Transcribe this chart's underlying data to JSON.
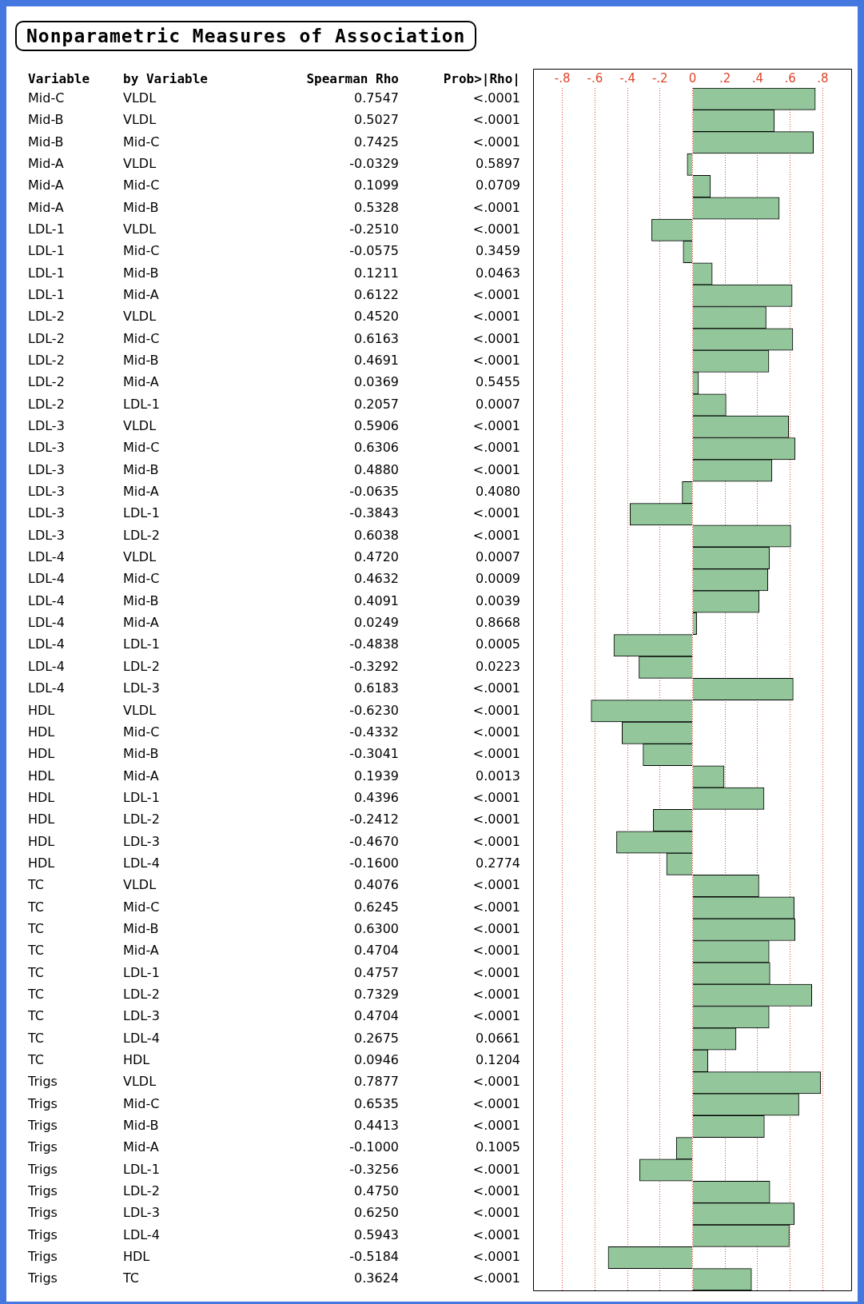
{
  "chart_data": {
    "type": "bar",
    "orientation": "horizontal",
    "title": "Nonparametric Measures of Association",
    "categories": [
      "Mid-C VLDL",
      "Mid-B VLDL",
      "Mid-B Mid-C",
      "Mid-A VLDL",
      "Mid-A Mid-C",
      "Mid-A Mid-B",
      "LDL-1 VLDL",
      "LDL-1 Mid-C",
      "LDL-1 Mid-B",
      "LDL-1 Mid-A",
      "LDL-2 VLDL",
      "LDL-2 Mid-C",
      "LDL-2 Mid-B",
      "LDL-2 Mid-A",
      "LDL-2 LDL-1",
      "LDL-3 VLDL",
      "LDL-3 Mid-C",
      "LDL-3 Mid-B",
      "LDL-3 Mid-A",
      "LDL-3 LDL-1",
      "LDL-3 LDL-2",
      "LDL-4 VLDL",
      "LDL-4 Mid-C",
      "LDL-4 Mid-B",
      "LDL-4 Mid-A",
      "LDL-4 LDL-1",
      "LDL-4 LDL-2",
      "LDL-4 LDL-3",
      "HDL VLDL",
      "HDL Mid-C",
      "HDL Mid-B",
      "HDL Mid-A",
      "HDL LDL-1",
      "HDL LDL-2",
      "HDL LDL-3",
      "HDL LDL-4",
      "TC VLDL",
      "TC Mid-C",
      "TC Mid-B",
      "TC Mid-A",
      "TC LDL-1",
      "TC LDL-2",
      "TC LDL-3",
      "TC LDL-4",
      "TC HDL",
      "Trigs VLDL",
      "Trigs Mid-C",
      "Trigs Mid-B",
      "Trigs Mid-A",
      "Trigs LDL-1",
      "Trigs LDL-2",
      "Trigs LDL-3",
      "Trigs LDL-4",
      "Trigs HDL",
      "Trigs TC"
    ],
    "values": [
      0.7547,
      0.5027,
      0.7425,
      -0.0329,
      0.1099,
      0.5328,
      -0.251,
      -0.0575,
      0.1211,
      0.6122,
      0.452,
      0.6163,
      0.4691,
      0.0369,
      0.2057,
      0.5906,
      0.6306,
      0.488,
      -0.0635,
      -0.3843,
      0.6038,
      0.472,
      0.4632,
      0.4091,
      0.0249,
      -0.4838,
      -0.3292,
      0.6183,
      -0.623,
      -0.4332,
      -0.3041,
      0.1939,
      0.4396,
      -0.2412,
      -0.467,
      -0.16,
      0.4076,
      0.6245,
      0.63,
      0.4704,
      0.4757,
      0.7329,
      0.4704,
      0.2675,
      0.0946,
      0.7877,
      0.6535,
      0.4413,
      -0.1,
      -0.3256,
      0.475,
      0.625,
      0.5943,
      -0.5184,
      0.3624
    ],
    "value_labels": [
      "0.7547",
      "0.5027",
      "0.7425",
      "-0.0329",
      "0.1099",
      "0.5328",
      "-0.2510",
      "-0.0575",
      "0.1211",
      "0.6122",
      "0.4520",
      "0.6163",
      "0.4691",
      "0.0369",
      "0.2057",
      "0.5906",
      "0.6306",
      "0.4880",
      "-0.0635",
      "-0.3843",
      "0.6038",
      "0.4720",
      "0.4632",
      "0.4091",
      "0.0249",
      "-0.4838",
      "-0.3292",
      "0.6183",
      "-0.6230",
      "-0.4332",
      "-0.3041",
      "0.1939",
      "0.4396",
      "-0.2412",
      "-0.4670",
      "-0.1600",
      "0.4076",
      "0.6245",
      "0.6300",
      "0.4704",
      "0.4757",
      "0.7329",
      "0.4704",
      "0.2675",
      "0.0946",
      "0.7877",
      "0.6535",
      "0.4413",
      "-0.1000",
      "-0.3256",
      "0.4750",
      "0.6250",
      "0.5943",
      "-0.5184",
      "0.3624"
    ],
    "annotations": [
      "Variable",
      "by Variable",
      "Spearman Rho",
      "Prob>|Rho|",
      "<.0001",
      "<.0001",
      "<.0001",
      "0.5897",
      "0.0709",
      "<.0001",
      "<.0001",
      "0.3459",
      "0.0463",
      "<.0001",
      "<.0001",
      "<.0001",
      "<.0001",
      "0.5455",
      "0.0007",
      "<.0001",
      "<.0001",
      "<.0001",
      "0.4080",
      "<.0001",
      "<.0001",
      "0.0007",
      "0.0009",
      "0.0039",
      "0.8668",
      "0.0005",
      "0.0223",
      "<.0001",
      "<.0001",
      "<.0001",
      "<.0001",
      "0.0013",
      "<.0001",
      "<.0001",
      "<.0001",
      "0.2774",
      "<.0001",
      "<.0001",
      "<.0001",
      "<.0001",
      "<.0001",
      "<.0001",
      "<.0001",
      "0.0661",
      "0.1204",
      "<.0001",
      "<.0001",
      "<.0001",
      "0.1005",
      "<.0001",
      "<.0001",
      "<.0001",
      "<.0001",
      "<.0001",
      "<.0001"
    ],
    "color": "#93c79b",
    "xlim": [
      -0.98,
      0.98
    ],
    "xticks": [
      {
        "value": -0.8,
        "label": "-.8"
      },
      {
        "value": -0.6,
        "label": "-.6"
      },
      {
        "value": -0.4,
        "label": "-.4"
      },
      {
        "value": -0.2,
        "label": "-.2"
      },
      0,
      {
        "value": 0.2,
        "label": ".2"
      },
      {
        "value": 0.4,
        "label": ".4"
      },
      {
        "value": 0.6,
        "label": ".6"
      },
      {
        "value": 0.8,
        "label": ".8"
      }
    ],
    "grid": "x",
    "legend": false
  }
}
